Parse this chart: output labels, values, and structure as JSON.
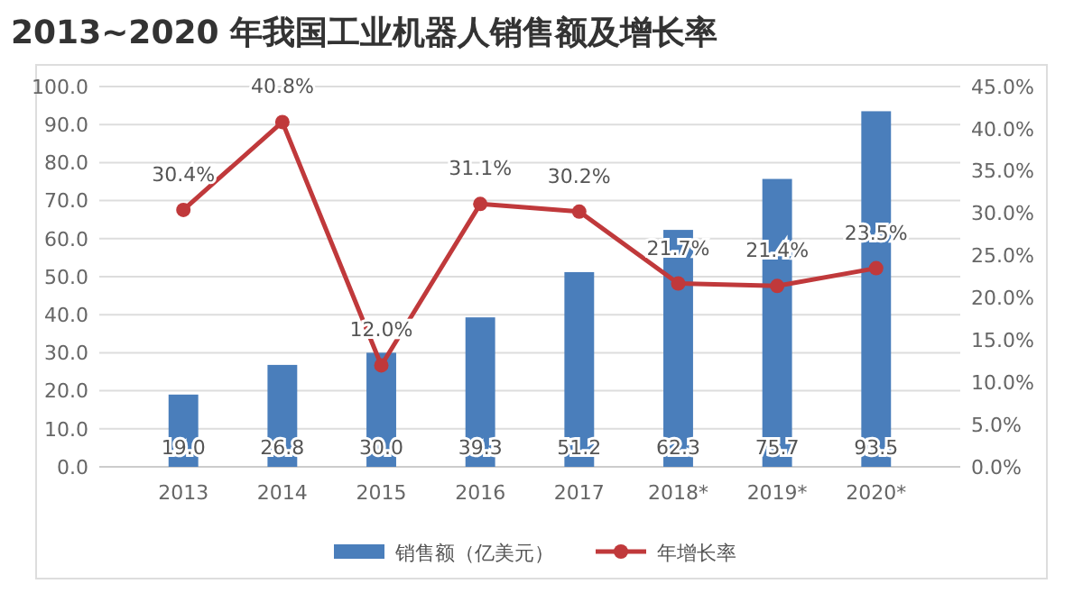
{
  "chart_data": {
    "type": "bar",
    "title": "2013~2020 年我国工业机器人销售额及增长率",
    "categories": [
      "2013",
      "2014",
      "2015",
      "2016",
      "2017",
      "2018*",
      "2019*",
      "2020*"
    ],
    "series": [
      {
        "name": "销售额（亿美元）",
        "color": "#4a7ebb",
        "values": [
          19.0,
          26.8,
          30.0,
          39.3,
          51.2,
          62.3,
          75.7,
          93.5
        ],
        "value_labels": [
          "19.0",
          "26.8",
          "30.0",
          "39.3",
          "51.2",
          "62.3",
          "75.7",
          "93.5"
        ]
      },
      {
        "name": "年增长率",
        "type": "line",
        "axis": "y2",
        "color": "#c0393b",
        "marker": "circle",
        "values": [
          30.4,
          40.8,
          12.0,
          31.1,
          30.2,
          21.7,
          21.4,
          23.5
        ],
        "value_labels": [
          "30.4%",
          "40.8%",
          "12.0%",
          "31.1%",
          "30.2%",
          "21.7%",
          "21.4%",
          "23.5%"
        ]
      }
    ],
    "ylim": [
      0,
      100
    ],
    "yticks": [
      {
        "value": 0,
        "label": "0.0"
      },
      {
        "value": 10,
        "label": "10.0"
      },
      {
        "value": 20,
        "label": "20.0"
      },
      {
        "value": 30,
        "label": "30.0"
      },
      {
        "value": 40,
        "label": "40.0"
      },
      {
        "value": 50,
        "label": "50.0"
      },
      {
        "value": 60,
        "label": "60.0"
      },
      {
        "value": 70,
        "label": "70.0"
      },
      {
        "value": 80,
        "label": "80.0"
      },
      {
        "value": 90,
        "label": "90.0"
      },
      {
        "value": 100,
        "label": "100.0"
      }
    ],
    "y2lim": [
      0,
      45
    ],
    "y2ticks": [
      {
        "value": 0,
        "label": "0.0%"
      },
      {
        "value": 5,
        "label": "5.0%"
      },
      {
        "value": 10,
        "label": "10.0%"
      },
      {
        "value": 15,
        "label": "15.0%"
      },
      {
        "value": 20,
        "label": "20.0%"
      },
      {
        "value": 25,
        "label": "25.0%"
      },
      {
        "value": 30,
        "label": "30.0%"
      },
      {
        "value": 35,
        "label": "35.0%"
      },
      {
        "value": 40,
        "label": "40.0%"
      },
      {
        "value": 45,
        "label": "45.0%"
      }
    ],
    "grid": "y",
    "legend": "bottom"
  }
}
